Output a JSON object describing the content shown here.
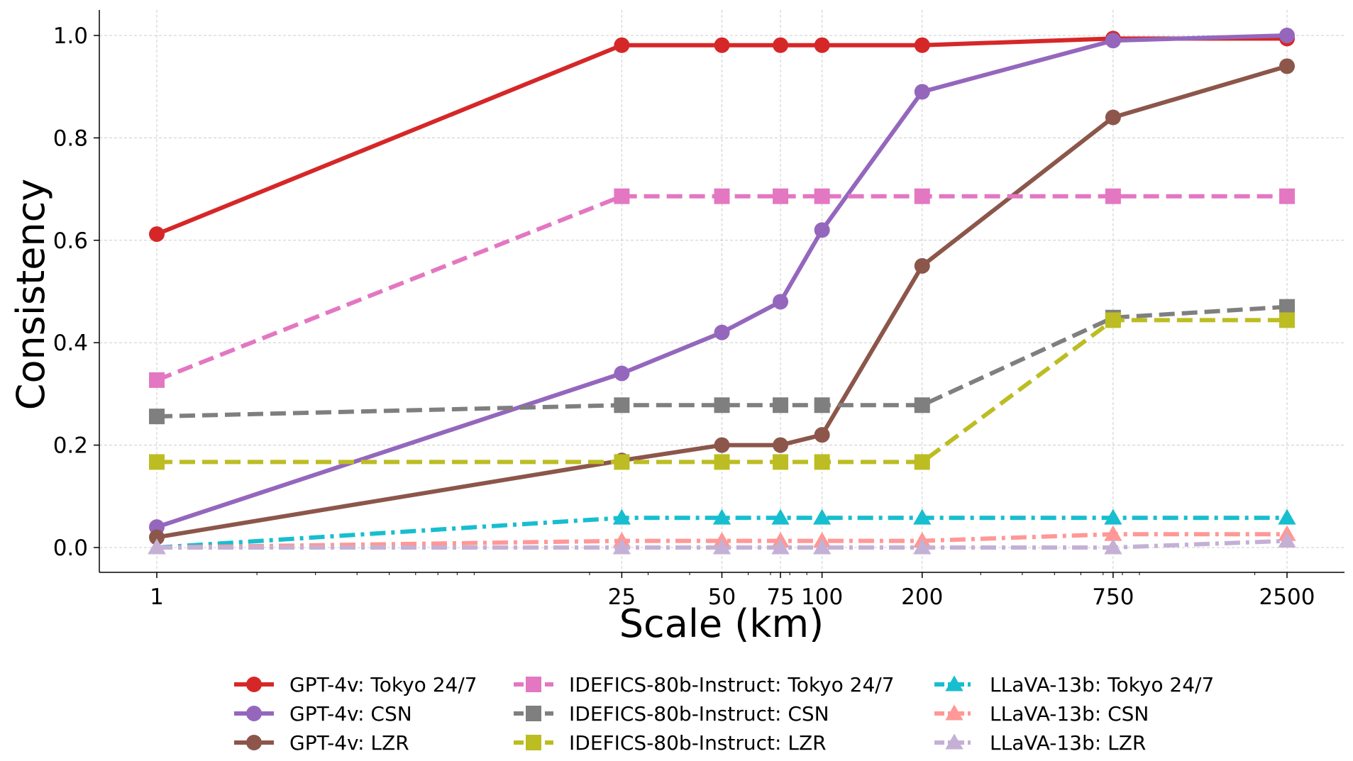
{
  "chart_data": {
    "type": "line",
    "title": "",
    "xlabel": "Scale (km)",
    "ylabel": "Consistency",
    "xscale": "log",
    "x": [
      1,
      25,
      50,
      75,
      100,
      200,
      750,
      2500
    ],
    "xtick_labels": [
      "1",
      "25",
      "50",
      "75",
      "100",
      "200",
      "750",
      "2500"
    ],
    "yticks": [
      0.0,
      0.2,
      0.4,
      0.6,
      0.8,
      1.0
    ],
    "ytick_labels": [
      "0.0",
      "0.2",
      "0.4",
      "0.6",
      "0.8",
      "1.0"
    ],
    "ylim": [
      -0.05,
      1.05
    ],
    "grid": true,
    "legend_position": "bottom",
    "series": [
      {
        "name": "GPT-4v: Tokyo 24/7",
        "color": "#d62728",
        "marker": "circle",
        "linestyle": "solid",
        "values": [
          0.612,
          0.981,
          0.981,
          0.981,
          0.981,
          0.981,
          0.994,
          0.994
        ]
      },
      {
        "name": "GPT-4v: CSN",
        "color": "#9467bd",
        "marker": "circle",
        "linestyle": "solid",
        "values": [
          0.04,
          0.34,
          0.42,
          0.48,
          0.62,
          0.89,
          0.99,
          1.0
        ]
      },
      {
        "name": "GPT-4v: LZR",
        "color": "#8c564b",
        "marker": "circle",
        "linestyle": "solid",
        "values": [
          0.02,
          0.17,
          0.2,
          0.2,
          0.22,
          0.55,
          0.84,
          0.94
        ]
      },
      {
        "name": "IDEFICS-80b-Instruct: Tokyo 24/7",
        "color": "#e377c2",
        "marker": "square",
        "linestyle": "dashed",
        "values": [
          0.327,
          0.686,
          0.686,
          0.686,
          0.686,
          0.686,
          0.686,
          0.686
        ]
      },
      {
        "name": "IDEFICS-80b-Instruct: CSN",
        "color": "#7f7f7f",
        "marker": "square",
        "linestyle": "dashed",
        "values": [
          0.256,
          0.278,
          0.278,
          0.278,
          0.278,
          0.278,
          0.449,
          0.47
        ]
      },
      {
        "name": "IDEFICS-80b-Instruct: LZR",
        "color": "#bcbd22",
        "marker": "square",
        "linestyle": "dashed",
        "values": [
          0.167,
          0.167,
          0.167,
          0.167,
          0.167,
          0.167,
          0.444,
          0.444
        ]
      },
      {
        "name": "LLaVA-13b: Tokyo 24/7",
        "color": "#17becf",
        "marker": "triangle",
        "linestyle": "dashdot",
        "values": [
          0.0,
          0.058,
          0.058,
          0.058,
          0.058,
          0.058,
          0.058,
          0.058
        ]
      },
      {
        "name": "LLaVA-13b: CSN",
        "color": "#ff9896",
        "marker": "triangle",
        "linestyle": "dashdot",
        "values": [
          0.0,
          0.013,
          0.013,
          0.013,
          0.013,
          0.013,
          0.026,
          0.026
        ]
      },
      {
        "name": "LLaVA-13b: LZR",
        "color": "#c5b0d5",
        "marker": "triangle",
        "linestyle": "dashdot",
        "values": [
          0.0,
          0.0,
          0.0,
          0.0,
          0.0,
          0.0,
          0.0,
          0.013
        ]
      }
    ]
  }
}
